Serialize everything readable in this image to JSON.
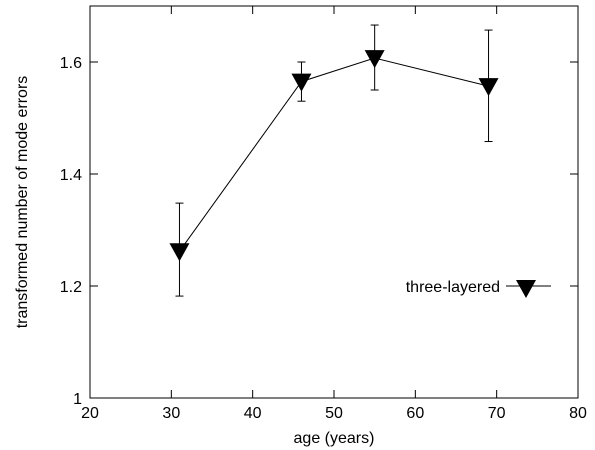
{
  "chart_data": {
    "type": "line",
    "title": "",
    "xlabel": "age (years)",
    "ylabel": "transformed number of mode errors",
    "xlim": [
      20,
      80
    ],
    "ylim": [
      1,
      1.7
    ],
    "x_ticks": [
      20,
      30,
      40,
      50,
      60,
      70,
      80
    ],
    "x_tick_labels": [
      "20",
      "30",
      "40",
      "50",
      "60",
      "70",
      "80"
    ],
    "y_ticks": [
      1,
      1.2,
      1.4,
      1.6
    ],
    "y_tick_labels": [
      "1",
      "1.2",
      "1.4",
      "1.6"
    ],
    "grid": false,
    "legend_position": "right",
    "series": [
      {
        "name": "three-layered",
        "marker": "down-triangle",
        "color": "#000000",
        "x": [
          31,
          46,
          55,
          69
        ],
        "y": [
          1.262,
          1.565,
          1.607,
          1.557
        ],
        "err_low": [
          1.182,
          1.53,
          1.55,
          1.458
        ],
        "err_high": [
          1.348,
          1.6,
          1.666,
          1.657
        ]
      }
    ]
  }
}
